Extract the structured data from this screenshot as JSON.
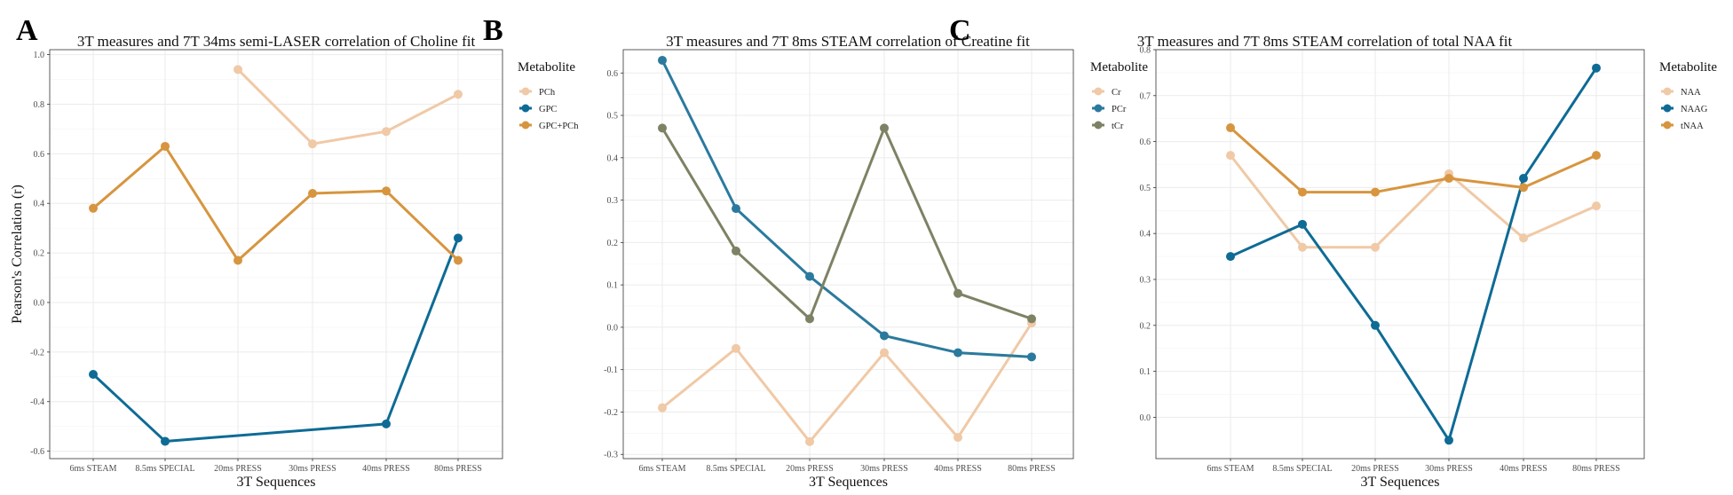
{
  "chart_data": [
    {
      "panel": "A",
      "type": "line",
      "title": "3T measures and 7T 34ms semi-LASER correlation of Choline fit",
      "xlabel": "3T Sequences",
      "ylabel": "Pearson's Correlation (r)",
      "categories": [
        "6ms STEAM",
        "8.5ms SPECIAL",
        "20ms PRESS",
        "30ms PRESS",
        "40ms PRESS",
        "80ms PRESS"
      ],
      "ylim": [
        -0.63,
        1.02
      ],
      "yticks": [
        "-0.6",
        "-0.4",
        "-0.2",
        "0.0",
        "0.2",
        "0.4",
        "0.6",
        "0.8",
        "1.0"
      ],
      "legend_title": "Metabolite",
      "series": [
        {
          "name": "PCh",
          "color": "#f0c9a6",
          "values": [
            null,
            null,
            0.94,
            0.64,
            0.69,
            0.84
          ]
        },
        {
          "name": "GPC",
          "color": "#0e6b95",
          "values": [
            -0.29,
            -0.56,
            null,
            null,
            -0.49,
            0.26
          ]
        },
        {
          "name": "GPC+PCh",
          "color": "#d7953f",
          "values": [
            0.38,
            0.63,
            0.17,
            0.44,
            0.45,
            0.17
          ]
        }
      ]
    },
    {
      "panel": "B",
      "type": "line",
      "title": "3T measures and 7T 8ms STEAM correlation of Creatine fit",
      "xlabel": "3T Sequences",
      "ylabel": "",
      "categories": [
        "6ms STEAM",
        "8.5ms SPECIAL",
        "20ms PRESS",
        "30ms PRESS",
        "40ms PRESS",
        "80ms PRESS"
      ],
      "ylim": [
        -0.31,
        0.655
      ],
      "yticks": [
        "-0.3",
        "-0.2",
        "-0.1",
        "0.0",
        "0.1",
        "0.2",
        "0.3",
        "0.4",
        "0.5",
        "0.6"
      ],
      "legend_title": "Metabolite",
      "series": [
        {
          "name": "Cr",
          "color": "#f0c9a6",
          "values": [
            -0.19,
            -0.05,
            -0.27,
            -0.06,
            -0.26,
            0.01
          ]
        },
        {
          "name": "PCr",
          "color": "#2b7a9e",
          "values": [
            0.63,
            0.28,
            0.12,
            -0.02,
            -0.06,
            -0.07
          ]
        },
        {
          "name": "tCr",
          "color": "#7e8264",
          "values": [
            0.47,
            0.18,
            0.02,
            0.47,
            0.08,
            0.02
          ]
        }
      ]
    },
    {
      "panel": "C",
      "type": "line",
      "title": "3T measures and 7T 8ms STEAM correlation of total NAA fit",
      "xlabel": "3T Sequences",
      "ylabel": "",
      "categories": [
        "6ms STEAM",
        "8.5ms SPECIAL",
        "20ms PRESS",
        "30ms PRESS",
        "40ms PRESS",
        "80ms PRESS"
      ],
      "ylim": [
        -0.09,
        0.8
      ],
      "yticks": [
        "0.0",
        "0.1",
        "0.2",
        "0.3",
        "0.4",
        "0.5",
        "0.6",
        "0.7",
        "0.8"
      ],
      "legend_title": "Metabolite",
      "series": [
        {
          "name": "NAA",
          "color": "#f0c9a6",
          "values": [
            0.57,
            0.37,
            0.37,
            0.53,
            0.39,
            0.46
          ]
        },
        {
          "name": "NAAG",
          "color": "#0e6b95",
          "values": [
            0.35,
            0.42,
            0.2,
            -0.05,
            0.52,
            0.76
          ]
        },
        {
          "name": "tNAA",
          "color": "#d7953f",
          "values": [
            0.63,
            0.49,
            0.49,
            0.52,
            0.5,
            0.57
          ]
        }
      ]
    }
  ]
}
